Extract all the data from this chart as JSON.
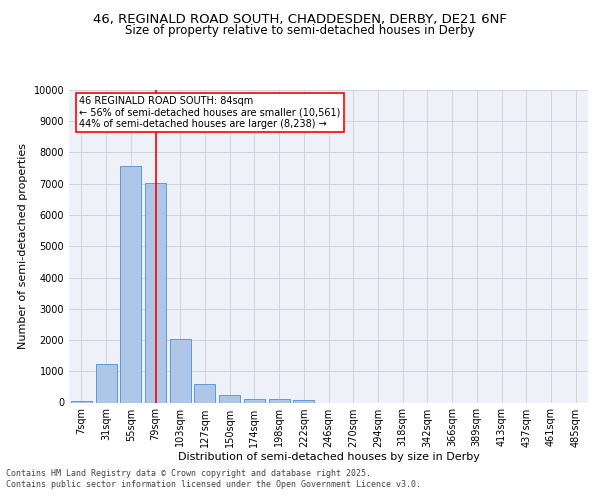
{
  "title_line1": "46, REGINALD ROAD SOUTH, CHADDESDEN, DERBY, DE21 6NF",
  "title_line2": "Size of property relative to semi-detached houses in Derby",
  "xlabel": "Distribution of semi-detached houses by size in Derby",
  "ylabel": "Number of semi-detached properties",
  "categories": [
    "7sqm",
    "31sqm",
    "55sqm",
    "79sqm",
    "103sqm",
    "127sqm",
    "150sqm",
    "174sqm",
    "198sqm",
    "222sqm",
    "246sqm",
    "270sqm",
    "294sqm",
    "318sqm",
    "342sqm",
    "366sqm",
    "389sqm",
    "413sqm",
    "437sqm",
    "461sqm",
    "485sqm"
  ],
  "values": [
    50,
    1220,
    7580,
    7030,
    2030,
    590,
    250,
    120,
    100,
    90,
    0,
    0,
    0,
    0,
    0,
    0,
    0,
    0,
    0,
    0,
    0
  ],
  "bar_color": "#aec6e8",
  "bar_edge_color": "#5b9bd5",
  "property_bin_index": 3,
  "vline_color": "red",
  "annotation_text_line1": "46 REGINALD ROAD SOUTH: 84sqm",
  "annotation_text_line2": "← 56% of semi-detached houses are smaller (10,561)",
  "annotation_text_line3": "44% of semi-detached houses are larger (8,238) →",
  "annotation_box_color": "white",
  "annotation_box_edge_color": "red",
  "ylim": [
    0,
    10000
  ],
  "yticks": [
    0,
    1000,
    2000,
    3000,
    4000,
    5000,
    6000,
    7000,
    8000,
    9000,
    10000
  ],
  "grid_color": "#c8d0dc",
  "bg_color": "#eef2f8",
  "footer_line1": "Contains HM Land Registry data © Crown copyright and database right 2025.",
  "footer_line2": "Contains public sector information licensed under the Open Government Licence v3.0.",
  "title_fontsize": 9.5,
  "subtitle_fontsize": 8.5,
  "axis_label_fontsize": 8,
  "tick_fontsize": 7,
  "footer_fontsize": 6,
  "annotation_fontsize": 7
}
